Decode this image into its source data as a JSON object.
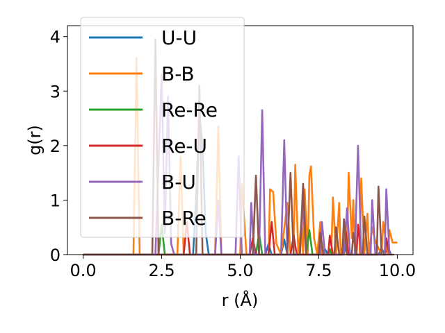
{
  "chart_data": {
    "type": "line",
    "xlabel": "r (Å)",
    "ylabel": "g(r)",
    "xlim": [
      -0.5,
      10.5
    ],
    "ylim": [
      0,
      4.2
    ],
    "xticks": [
      "0.0",
      "2.5",
      "5.0",
      "7.5",
      "10.0"
    ],
    "xtick_values": [
      0,
      2.5,
      5,
      7.5,
      10
    ],
    "yticks": [
      "0",
      "1",
      "2",
      "3",
      "4"
    ],
    "ytick_values": [
      0,
      1,
      2,
      3,
      4
    ],
    "grid": false,
    "legend_position": "upper-left",
    "series": [
      {
        "name": "U-U",
        "color": "#1f77b4",
        "points": [
          [
            0,
            0
          ],
          [
            3.5,
            0
          ],
          [
            3.6,
            1.1
          ],
          [
            3.7,
            2.6
          ],
          [
            3.8,
            2.0
          ],
          [
            3.9,
            0.4
          ],
          [
            4.0,
            0
          ],
          [
            5.8,
            0
          ],
          [
            5.9,
            0.2
          ],
          [
            6.0,
            0
          ],
          [
            6.3,
            0
          ],
          [
            6.4,
            0.28
          ],
          [
            6.5,
            0
          ],
          [
            7.6,
            0
          ],
          [
            7.7,
            0.1
          ],
          [
            7.8,
            0
          ],
          [
            8.2,
            0
          ],
          [
            8.3,
            0.22
          ],
          [
            8.4,
            0
          ],
          [
            9.4,
            0
          ],
          [
            9.5,
            0.12
          ],
          [
            9.6,
            0
          ],
          [
            9.7,
            0.14
          ],
          [
            9.8,
            0
          ]
        ]
      },
      {
        "name": "B-B",
        "color": "#ff7f0e",
        "points": [
          [
            0,
            0
          ],
          [
            1.6,
            0
          ],
          [
            1.7,
            3.6
          ],
          [
            1.8,
            0
          ],
          [
            3.0,
            0
          ],
          [
            3.1,
            1.8
          ],
          [
            3.2,
            0
          ],
          [
            4.2,
            0
          ],
          [
            4.3,
            2.35
          ],
          [
            4.4,
            0
          ],
          [
            5.0,
            0
          ],
          [
            5.05,
            1.3
          ],
          [
            5.2,
            0
          ],
          [
            5.9,
            0
          ],
          [
            5.95,
            1.2
          ],
          [
            6.05,
            1.15
          ],
          [
            6.15,
            0.2
          ],
          [
            6.3,
            0
          ],
          [
            6.5,
            0.95
          ],
          [
            6.6,
            0
          ],
          [
            6.7,
            0
          ],
          [
            6.75,
            1.65
          ],
          [
            6.85,
            0
          ],
          [
            6.95,
            0.6
          ],
          [
            7.0,
            0
          ],
          [
            7.05,
            1.2
          ],
          [
            7.15,
            0
          ],
          [
            7.2,
            1.45
          ],
          [
            7.25,
            1.62
          ],
          [
            7.35,
            0.3
          ],
          [
            7.45,
            0
          ],
          [
            7.55,
            0.6
          ],
          [
            7.6,
            0
          ],
          [
            7.9,
            0
          ],
          [
            7.95,
            1.05
          ],
          [
            8.05,
            0
          ],
          [
            8.15,
            0.95
          ],
          [
            8.2,
            0
          ],
          [
            8.4,
            0
          ],
          [
            8.45,
            1.5
          ],
          [
            8.55,
            0.3
          ],
          [
            8.6,
            1.0
          ],
          [
            8.65,
            0
          ],
          [
            8.8,
            0
          ],
          [
            8.85,
            1.4
          ],
          [
            8.95,
            0
          ],
          [
            9.05,
            0.75
          ],
          [
            9.1,
            0
          ],
          [
            9.2,
            0.5
          ],
          [
            9.3,
            0.25
          ],
          [
            9.5,
            0
          ],
          [
            9.55,
            0.6
          ],
          [
            9.7,
            0
          ],
          [
            9.75,
            0.45
          ],
          [
            9.85,
            0.22
          ],
          [
            10.0,
            0.22
          ]
        ]
      },
      {
        "name": "Re-Re",
        "color": "#2ca02c",
        "points": [
          [
            0,
            0
          ],
          [
            2.4,
            0
          ],
          [
            2.5,
            0.55
          ],
          [
            2.6,
            0
          ],
          [
            5.5,
            0
          ],
          [
            5.6,
            0.4
          ],
          [
            5.7,
            0
          ],
          [
            7.1,
            0
          ],
          [
            7.2,
            0.45
          ],
          [
            7.3,
            0
          ],
          [
            7.8,
            0
          ],
          [
            7.85,
            0.1
          ],
          [
            7.9,
            0
          ]
        ]
      },
      {
        "name": "Re-U",
        "color": "#d62728",
        "points": [
          [
            0,
            0
          ],
          [
            3.2,
            0
          ],
          [
            3.3,
            0.6
          ],
          [
            3.4,
            0
          ],
          [
            5.3,
            0
          ],
          [
            5.4,
            0.3
          ],
          [
            5.5,
            0
          ],
          [
            5.9,
            0
          ],
          [
            6.0,
            0.6
          ],
          [
            6.1,
            0
          ],
          [
            6.6,
            0
          ],
          [
            6.7,
            0.35
          ],
          [
            6.8,
            0
          ],
          [
            7.8,
            0
          ],
          [
            7.85,
            0.35
          ],
          [
            7.95,
            0
          ],
          [
            8.3,
            0
          ],
          [
            8.35,
            0.45
          ],
          [
            8.45,
            0
          ],
          [
            8.7,
            0
          ],
          [
            8.75,
            0.55
          ],
          [
            8.85,
            0
          ],
          [
            9.6,
            0
          ],
          [
            9.65,
            0.3
          ],
          [
            9.75,
            0
          ]
        ]
      },
      {
        "name": "B-U",
        "color": "#9467bd",
        "points": [
          [
            0,
            0
          ],
          [
            2.3,
            0
          ],
          [
            2.5,
            3.3
          ],
          [
            2.6,
            0.4
          ],
          [
            2.7,
            2.9
          ],
          [
            2.8,
            0.2
          ],
          [
            2.9,
            0
          ],
          [
            4.2,
            0
          ],
          [
            4.3,
            1.0
          ],
          [
            4.4,
            0
          ],
          [
            4.85,
            0
          ],
          [
            4.95,
            1.8
          ],
          [
            5.05,
            0
          ],
          [
            5.3,
            0
          ],
          [
            5.35,
            0.95
          ],
          [
            5.45,
            0
          ],
          [
            5.6,
            0
          ],
          [
            5.7,
            2.65
          ],
          [
            5.8,
            0
          ],
          [
            6.3,
            0
          ],
          [
            6.4,
            2.1
          ],
          [
            6.5,
            0
          ],
          [
            6.9,
            0
          ],
          [
            7.0,
            0.95
          ],
          [
            7.1,
            0
          ],
          [
            7.55,
            0
          ],
          [
            7.6,
            0.6
          ],
          [
            7.7,
            0
          ],
          [
            8.3,
            0
          ],
          [
            8.4,
            0.85
          ],
          [
            8.5,
            0
          ],
          [
            8.65,
            0
          ],
          [
            8.75,
            2.0
          ],
          [
            8.85,
            0
          ],
          [
            9.15,
            0
          ],
          [
            9.2,
            1.0
          ],
          [
            9.3,
            0
          ],
          [
            9.6,
            0
          ],
          [
            9.65,
            1.2
          ],
          [
            9.75,
            0
          ]
        ]
      },
      {
        "name": "B-Re",
        "color": "#8c564b",
        "points": [
          [
            0,
            0
          ],
          [
            2.2,
            0
          ],
          [
            2.3,
            3.95
          ],
          [
            2.4,
            0
          ],
          [
            3.6,
            0
          ],
          [
            3.7,
            3.1
          ],
          [
            3.8,
            0
          ],
          [
            5.4,
            0
          ],
          [
            5.5,
            1.45
          ],
          [
            5.6,
            0
          ],
          [
            6.5,
            0
          ],
          [
            6.6,
            1.5
          ],
          [
            6.7,
            0
          ],
          [
            6.9,
            0
          ],
          [
            7.0,
            1.3
          ],
          [
            7.1,
            0
          ],
          [
            7.5,
            0
          ],
          [
            7.55,
            0.4
          ],
          [
            7.65,
            0
          ],
          [
            8.0,
            0
          ],
          [
            8.05,
            0.5
          ],
          [
            8.15,
            0
          ],
          [
            8.25,
            0
          ],
          [
            8.3,
            0.65
          ],
          [
            8.4,
            0
          ],
          [
            8.55,
            0
          ],
          [
            8.6,
            0.4
          ],
          [
            8.7,
            0
          ],
          [
            8.9,
            0
          ],
          [
            8.95,
            0.7
          ],
          [
            9.05,
            0
          ],
          [
            9.35,
            0
          ],
          [
            9.4,
            1.25
          ],
          [
            9.5,
            0
          ],
          [
            9.9,
            0
          ]
        ]
      }
    ]
  }
}
